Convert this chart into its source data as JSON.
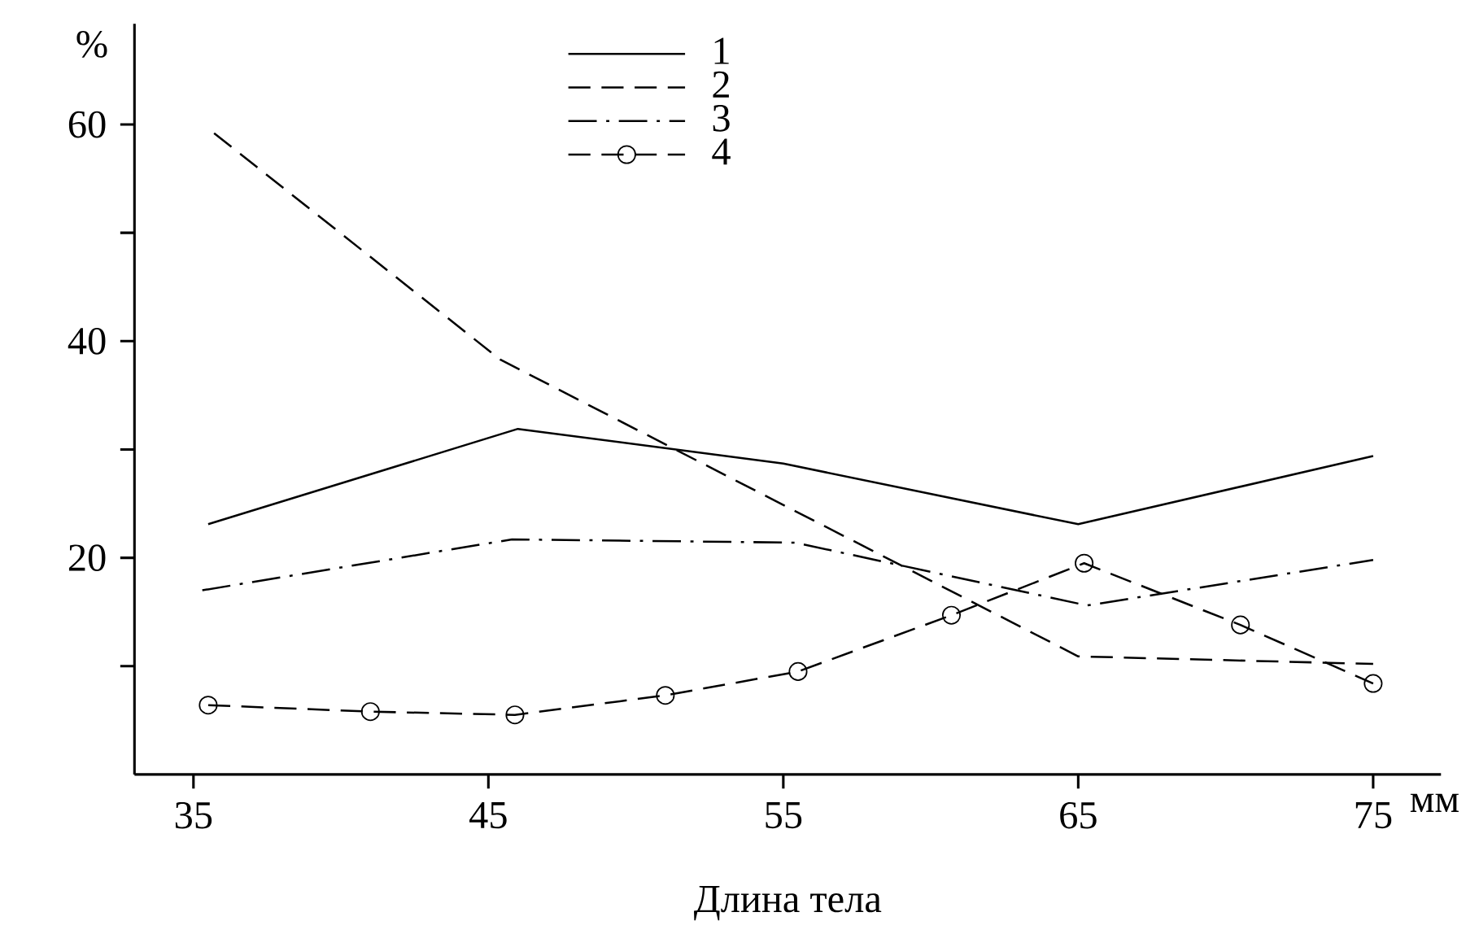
{
  "chart_data": {
    "type": "line",
    "xlabel": "Длина тела",
    "ylabel": "%",
    "annotations": [
      "мм"
    ],
    "xlim": [
      33,
      77.3
    ],
    "ylim": [
      0,
      69.3
    ],
    "xticks": [
      35,
      45,
      55,
      65,
      75
    ],
    "yticks": [
      {
        "value": 10,
        "label": null
      },
      20,
      {
        "value": 30,
        "label": null
      },
      40,
      {
        "value": 50,
        "label": null
      },
      60
    ],
    "legend": "top",
    "grid": false,
    "series": [
      {
        "name": "1",
        "color": "#000000",
        "line_style": "solid",
        "marker": "none",
        "x": [
          35.5,
          46,
          55,
          65,
          75
        ],
        "values": [
          23.1,
          31.9,
          28.7,
          23.1,
          29.4
        ]
      },
      {
        "name": "2",
        "color": "#000000",
        "line_style": "dashed",
        "marker": "none",
        "x": [
          35.7,
          45.4,
          65,
          75
        ],
        "values": [
          59.2,
          38.3,
          10.9,
          10.2
        ]
      },
      {
        "name": "3",
        "color": "#000000",
        "line_style": "dashdot",
        "marker": "none",
        "x": [
          35.3,
          45.8,
          55.4,
          65.3,
          75
        ],
        "values": [
          17.0,
          21.7,
          21.4,
          15.6,
          19.8
        ]
      },
      {
        "name": "4",
        "color": "#000000",
        "line_style": "dashed",
        "marker": "circle",
        "x": [
          35.5,
          41,
          45.9,
          51,
          55.5,
          60.7,
          65.2,
          70.5,
          75
        ],
        "values": [
          6.4,
          5.8,
          5.5,
          7.3,
          9.5,
          14.7,
          19.5,
          13.8,
          8.4
        ]
      }
    ]
  }
}
